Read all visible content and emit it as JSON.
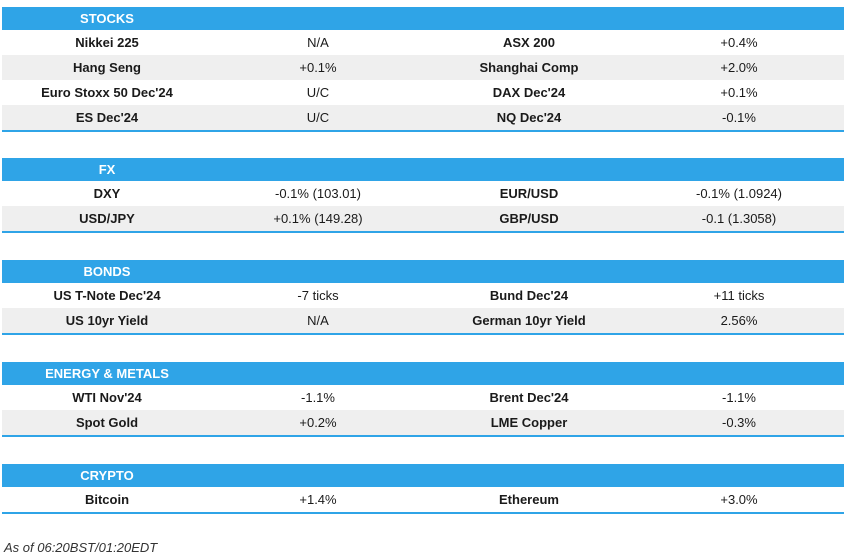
{
  "sections": [
    {
      "title": "STOCKS",
      "rows": [
        [
          "Nikkei 225",
          "N/A",
          "ASX 200",
          "+0.4%"
        ],
        [
          "Hang Seng",
          "+0.1%",
          "Shanghai Comp",
          "+2.0%"
        ],
        [
          "Euro Stoxx 50 Dec'24",
          "U/C",
          "DAX Dec'24",
          "+0.1%"
        ],
        [
          "ES Dec'24",
          "U/C",
          "NQ Dec'24",
          "-0.1%"
        ]
      ]
    },
    {
      "title": "FX",
      "rows": [
        [
          "DXY",
          "-0.1% (103.01)",
          "EUR/USD",
          "-0.1% (1.0924)"
        ],
        [
          "USD/JPY",
          "+0.1% (149.28)",
          "GBP/USD",
          "-0.1 (1.3058)"
        ]
      ]
    },
    {
      "title": "BONDS",
      "rows": [
        [
          "US T-Note Dec'24",
          "-7 ticks",
          "Bund Dec'24",
          "+11 ticks"
        ],
        [
          "US 10yr Yield",
          "N/A",
          "German 10yr Yield",
          "2.56%"
        ]
      ]
    },
    {
      "title": "ENERGY & METALS",
      "rows": [
        [
          "WTI Nov'24",
          "-1.1%",
          "Brent Dec'24",
          "-1.1%"
        ],
        [
          "Spot Gold",
          "+0.2%",
          "LME Copper",
          "-0.3%"
        ]
      ]
    },
    {
      "title": "CRYPTO",
      "rows": [
        [
          "Bitcoin",
          "+1.4%",
          "Ethereum",
          "+3.0%"
        ]
      ]
    }
  ],
  "footer": "As of 06:20BST/01:20EDT",
  "colors": {
    "header": "#2fa4e7",
    "row_alt": "#efefef"
  }
}
